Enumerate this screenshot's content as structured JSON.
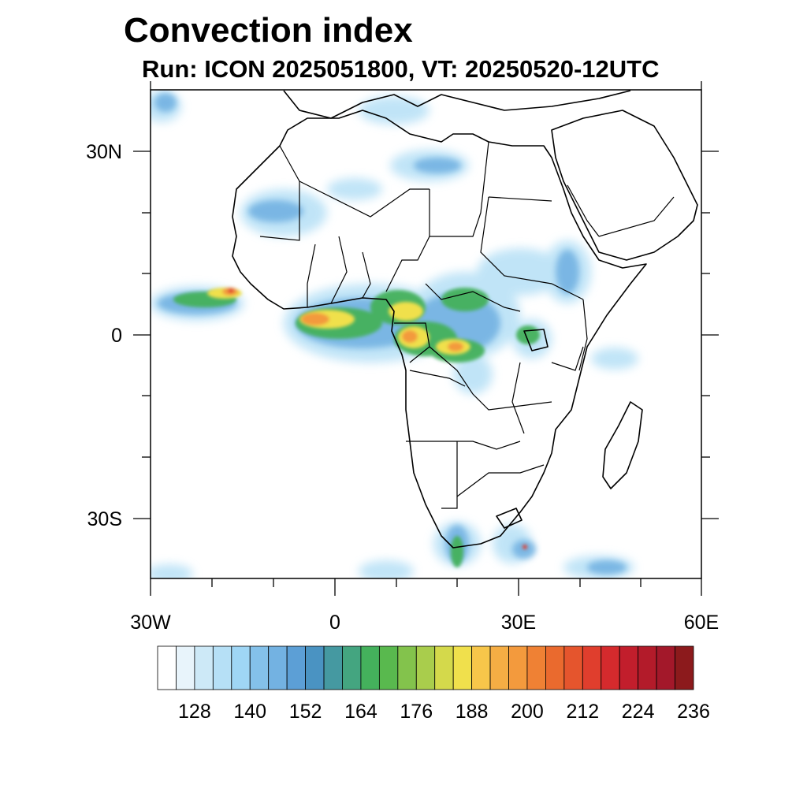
{
  "title": "Convection index",
  "subtitle": "Run: ICON 2025051800,  VT: 20250520-12UTC",
  "map": {
    "lon_range": [
      -30,
      60
    ],
    "lat_range": [
      -40,
      40
    ],
    "x_tick_labels": [
      "30W",
      "0",
      "30E",
      "60E"
    ],
    "y_tick_labels": [
      "30N",
      "0",
      "30S"
    ]
  },
  "colorbar": {
    "colors": [
      "#ffffff",
      "#e8f4fb",
      "#cde9f7",
      "#b6e0f6",
      "#9fd6f5",
      "#84c1ea",
      "#73b2e2",
      "#5c9fd6",
      "#4a93c2",
      "#4599a1",
      "#44a580",
      "#44b15c",
      "#59b94e",
      "#83c34c",
      "#a9cd4c",
      "#d4d94b",
      "#f0e04c",
      "#f7c64a",
      "#f5ad44",
      "#f39a3d",
      "#ef8134",
      "#ea6a2e",
      "#e5552d",
      "#e03e2d",
      "#d52a2d",
      "#c21e2c",
      "#b31b2a",
      "#a3182a",
      "#8c1a1c"
    ],
    "tick_labels": [
      "128",
      "140",
      "152",
      "164",
      "176",
      "188",
      "200",
      "212",
      "224",
      "236"
    ]
  },
  "field_colors": {
    "light_blue": "#b6e0f6",
    "mid_blue": "#73b2e2",
    "green": "#44b15c",
    "yellow": "#f0e04c",
    "orange": "#f39a3d",
    "red": "#e03e2d"
  }
}
